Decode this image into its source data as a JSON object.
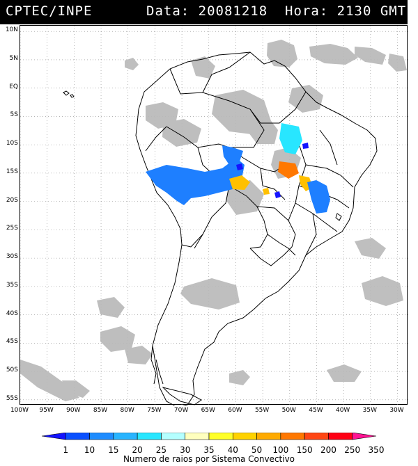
{
  "header": {
    "left_text": "CPTEC/INPE",
    "right_text": "Data: 20081218  Hora: 2130 GMT"
  },
  "map": {
    "lat_labels": [
      "10N",
      "5N",
      "EQ",
      "5S",
      "10S",
      "15S",
      "20S",
      "25S",
      "30S",
      "35S",
      "40S",
      "45S",
      "50S",
      "55S"
    ],
    "lon_labels": [
      "100W",
      "95W",
      "90W",
      "85W",
      "80W",
      "75W",
      "70W",
      "65W",
      "60W",
      "55W",
      "50W",
      "45W",
      "40W",
      "35W",
      "30W"
    ],
    "lat_range": [
      11,
      -56
    ],
    "lon_range": [
      -100,
      -28
    ]
  },
  "colorbar": {
    "labels": [
      "1",
      "10",
      "15",
      "20",
      "25",
      "30",
      "35",
      "40",
      "50",
      "100",
      "150",
      "200",
      "250",
      "350"
    ],
    "colors": [
      "#1414ff",
      "#0a50ff",
      "#1e8cff",
      "#28b4ff",
      "#28e6ff",
      "#b4ffff",
      "#ffffbe",
      "#ffff28",
      "#ffd200",
      "#ffaa00",
      "#ff7800",
      "#ff4614",
      "#ff0014",
      "#ff1493"
    ],
    "caption": "Numero de raios por Sistema Convectivo"
  }
}
